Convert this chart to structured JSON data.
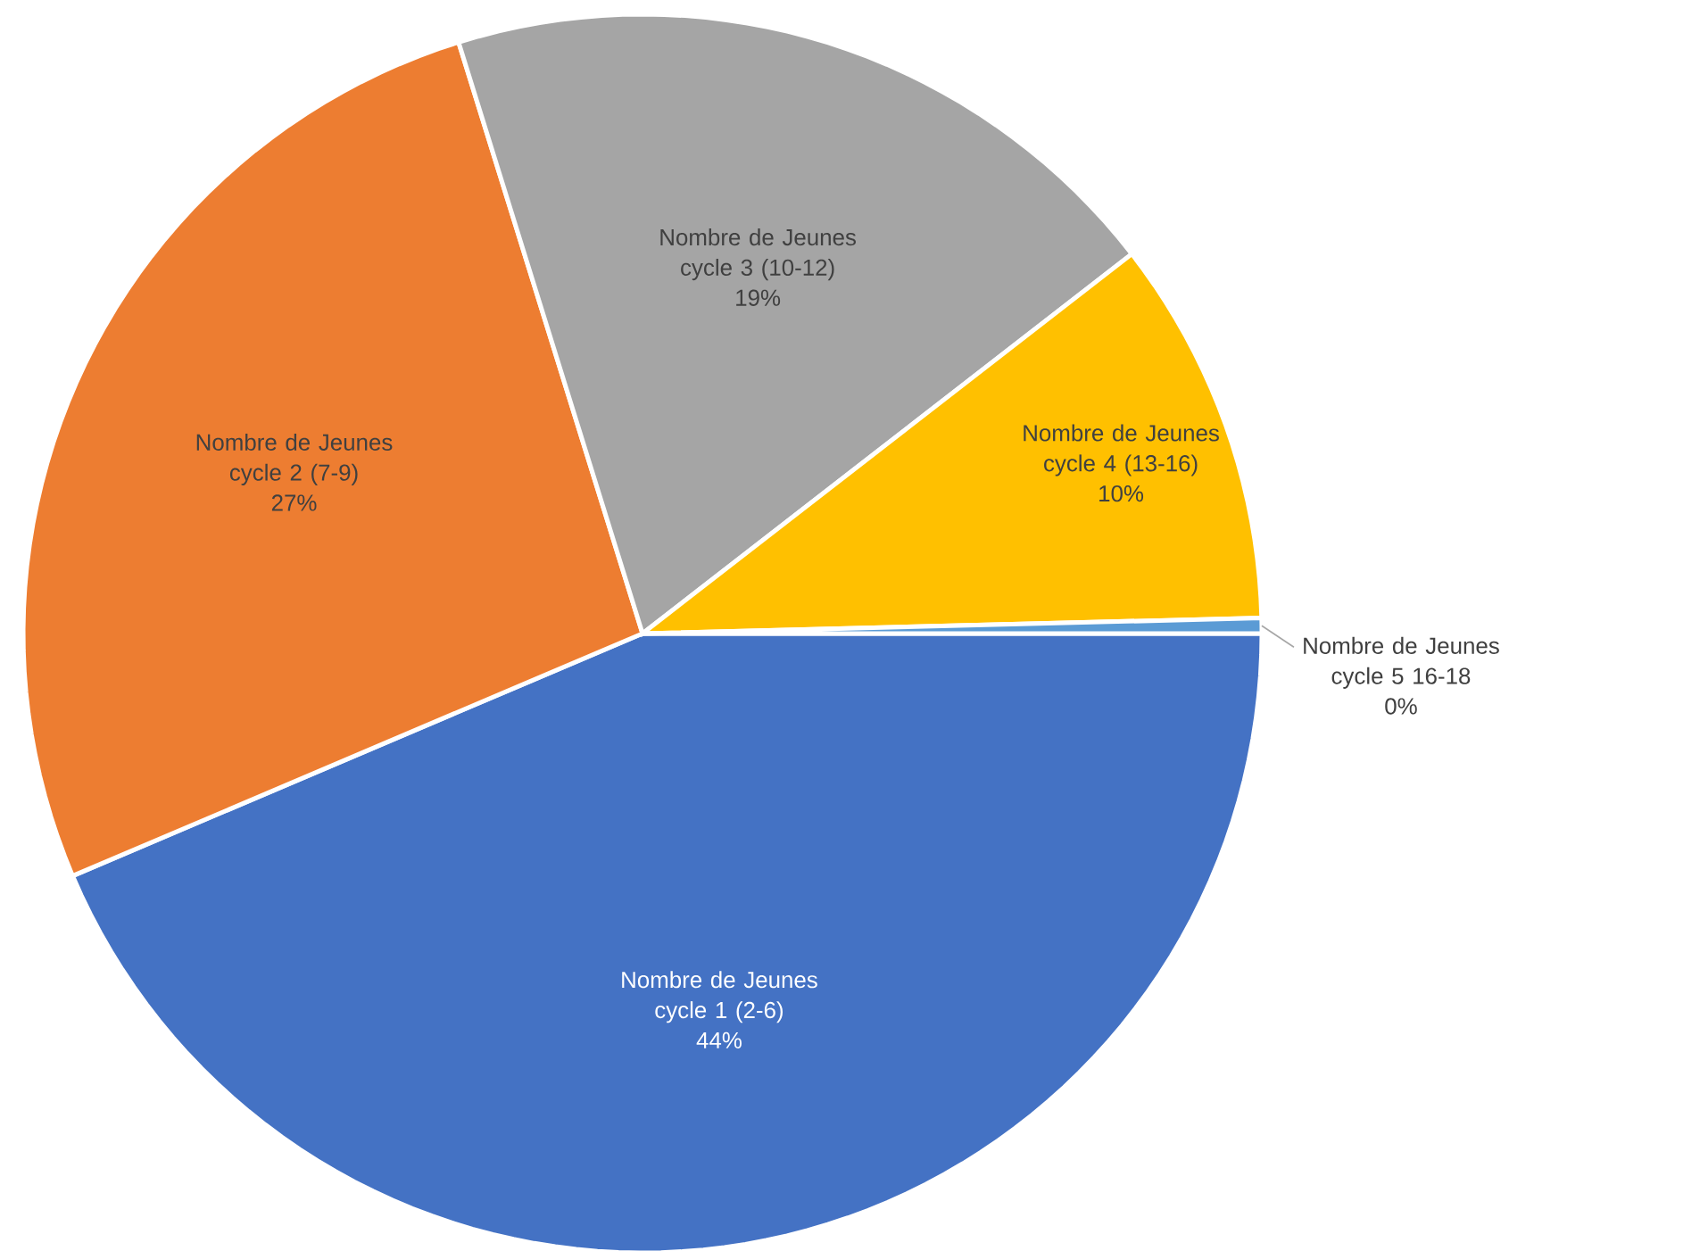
{
  "chart_data": {
    "type": "pie",
    "categories": [
      "Nombre de Jeunes cycle 1 (2-6)",
      "Nombre de Jeunes cycle 2 (7-9)",
      "Nombre de Jeunes cycle 3 (10-12)",
      "Nombre de Jeunes cycle 4 (13-16)",
      "Nombre de Jeunes cycle 5 16-18"
    ],
    "values": [
      43.6,
      26.6,
      19.3,
      10.1,
      0.4
    ],
    "value_labels": [
      "44%",
      "27%",
      "19%",
      "10%",
      "0%"
    ],
    "colors": [
      "#4472c4",
      "#ed7d31",
      "#a5a5a5",
      "#ffc000",
      "#5b9bd5"
    ]
  }
}
